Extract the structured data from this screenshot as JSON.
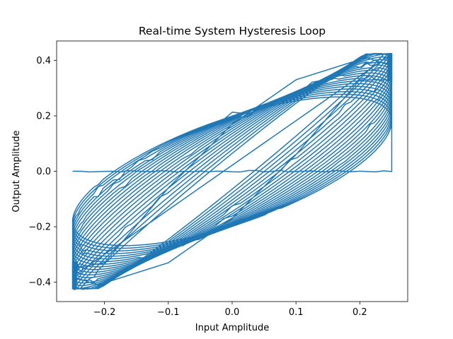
{
  "chart_data": {
    "type": "line",
    "title": "Real-time System Hysteresis Loop",
    "xlabel": "Input Amplitude",
    "ylabel": "Output Amplitude",
    "xlim": [
      -0.275,
      0.275
    ],
    "ylim": [
      -0.47,
      0.47
    ],
    "xticks": [
      -0.2,
      -0.1,
      0.0,
      0.1,
      0.2
    ],
    "xtick_labels": [
      "−0.2",
      "−0.1",
      "0.0",
      "0.1",
      "0.2"
    ],
    "yticks": [
      -0.4,
      -0.2,
      0.0,
      0.2,
      0.4
    ],
    "ytick_labels": [
      "−0.4",
      "−0.2",
      "0.0",
      "0.2",
      "0.4"
    ],
    "grid": false,
    "legend": "none",
    "color": "#1f77b4",
    "series": [
      {
        "description_points": "Concentric hysteresis loops growing from a flat line at y=0 to a saturated loop; input sweeps from -0.25 to 0.25",
        "x_range": [
          -0.25,
          0.25
        ],
        "y_range": [
          -0.43,
          0.43
        ],
        "initial_segment": {
          "x": [
            -0.25,
            0.25
          ],
          "y": [
            0.0,
            0.0
          ]
        },
        "loop_count": 22,
        "saturation_level": 0.425,
        "inner_loop": {
          "upper_branch": [
            [
              -0.25,
              -0.38
            ],
            [
              -0.21,
              -0.41
            ],
            [
              -0.1,
              -0.33
            ],
            [
              0.0,
              -0.17
            ],
            [
              0.1,
              0.06
            ],
            [
              0.2,
              0.33
            ],
            [
              0.25,
              0.33
            ]
          ],
          "lower_branch": [
            [
              0.25,
              0.38
            ],
            [
              0.21,
              0.41
            ],
            [
              0.1,
              0.33
            ],
            [
              0.0,
              0.17
            ],
            [
              -0.1,
              -0.06
            ],
            [
              -0.2,
              -0.33
            ],
            [
              -0.25,
              -0.35
            ]
          ]
        }
      }
    ]
  }
}
